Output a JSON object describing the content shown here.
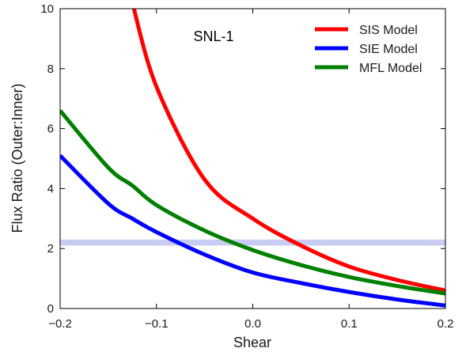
{
  "chart_data": {
    "type": "line",
    "title": "",
    "annotation": "SNL-1",
    "xlabel": "Shear",
    "ylabel": "Flux Ratio (Outer:Inner)",
    "xlim": [
      -0.2,
      0.2
    ],
    "ylim": [
      0,
      10
    ],
    "xticks": [
      -0.2,
      -0.1,
      0.0,
      0.1,
      0.2
    ],
    "xtick_labels": [
      "−0.2",
      "−0.1",
      "0.0",
      "0.1",
      "0.2"
    ],
    "yticks": [
      0,
      2,
      4,
      6,
      8,
      10
    ],
    "ytick_labels": [
      "0",
      "2",
      "4",
      "6",
      "8",
      "10"
    ],
    "grid": false,
    "legend_position": "top-right",
    "observed_band": {
      "y_low": 2.1,
      "y_high": 2.3,
      "color": "#c8ccf2"
    },
    "x": [
      -0.2,
      -0.15,
      -0.125,
      -0.1,
      -0.05,
      0.0,
      0.05,
      0.1,
      0.15,
      0.2
    ],
    "series": [
      {
        "name": "SIS Model",
        "color": "#ff0000",
        "values": [
          null,
          null,
          10.2,
          7.4,
          4.3,
          3.0,
          2.1,
          1.4,
          0.95,
          0.6
        ]
      },
      {
        "name": "SIE Model",
        "color": "#0000ff",
        "values": [
          5.1,
          3.5,
          3.0,
          2.55,
          1.8,
          1.2,
          0.85,
          0.55,
          0.3,
          0.1
        ]
      },
      {
        "name": "MFL Model",
        "color": "#008000",
        "values": [
          6.6,
          4.7,
          4.1,
          3.45,
          2.6,
          1.95,
          1.45,
          1.05,
          0.75,
          0.5
        ]
      }
    ]
  }
}
